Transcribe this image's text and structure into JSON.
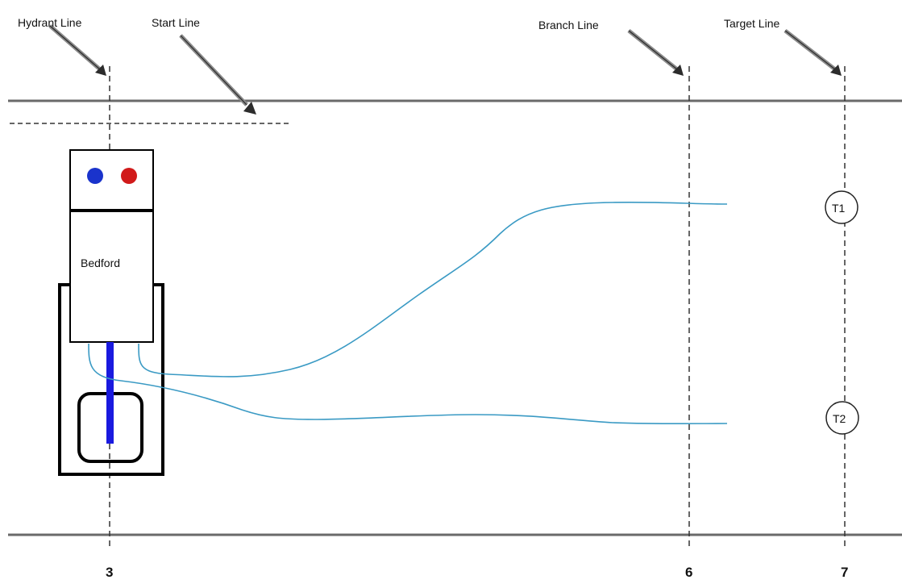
{
  "labels": {
    "hydrant_line": "Hydrant Line",
    "start_line": "Start Line",
    "branch_line": "Branch Line",
    "target_line": "Target Line"
  },
  "markers": {
    "hydrant": "3",
    "branch": "6",
    "target": "7"
  },
  "vehicle": {
    "name": "Bedford",
    "lights": [
      "#1a33cc",
      "#d11a1a"
    ],
    "pump_bar_color": "#1a1adf"
  },
  "targets": {
    "t1": "T1",
    "t2": "T2"
  },
  "colors": {
    "hose": "#3a9ac4",
    "line": "#6a6a6a",
    "dash": "#333333"
  }
}
